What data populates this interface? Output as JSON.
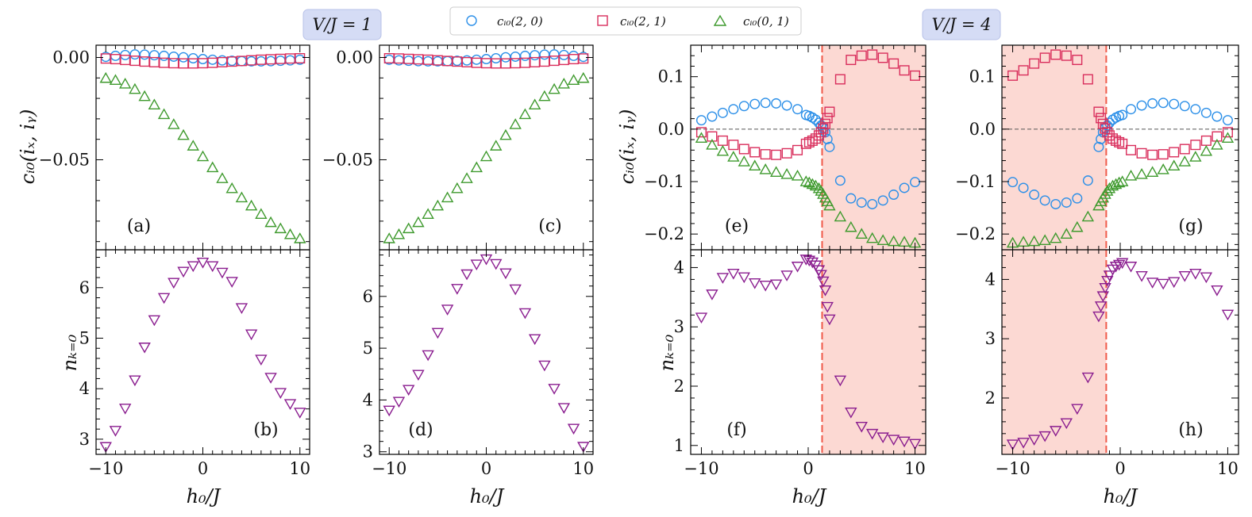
{
  "figure": {
    "legend": [
      {
        "label": "c_{i0}(2,0)",
        "marker": "circle",
        "color": "#2b8fe8"
      },
      {
        "label": "c_{i0}(2,1)",
        "marker": "square",
        "color": "#d92e5c"
      },
      {
        "label": "c_{i0}(0,1)",
        "marker": "triangle-up",
        "color": "#3f9a2e"
      }
    ],
    "legend_display": [
      "cᵢ₀(2, 0)",
      "cᵢ₀(2, 1)",
      "cᵢ₀(0, 1)"
    ],
    "titles": [
      "V/J = 1",
      "V/J = 4"
    ],
    "colors": {
      "circle": "#2b8fe8",
      "square": "#d92e5c",
      "triangle": "#3f9a2e",
      "nk": "#8a1d8f",
      "shade": "#fcd9d3",
      "vline": "#f05a4a",
      "title_bg": "#d5dcf5"
    },
    "axis_labels": {
      "corr_y": "cᵢ₀(iₓ, iᵧ)",
      "nk_y": "nₖ₌₀",
      "x": "h₀/J"
    }
  },
  "chart_data": [
    {
      "panel": "a",
      "type": "scatter",
      "title": "V/J = 1",
      "xlabel": "h_0/J",
      "ylabel": "c_{i0}(i_x, i_y)",
      "xlim": [
        -11,
        11
      ],
      "ylim": [
        -0.094,
        0.006
      ],
      "xticks": [
        -10,
        0,
        10
      ],
      "yticks": [
        0.0,
        -0.05
      ],
      "ytick_labels": [
        "0.00",
        "−0.05"
      ],
      "x": [
        -10,
        -9,
        -8,
        -7,
        -6,
        -5,
        -4,
        -3,
        -2,
        -1,
        0,
        1,
        2,
        3,
        4,
        5,
        6,
        7,
        8,
        9,
        10
      ],
      "series": [
        {
          "name": "c_{i0}(2,0)",
          "marker": "circle",
          "values": [
            0.0003,
            0.0008,
            0.0012,
            0.0015,
            0.0014,
            0.0011,
            0.0008,
            0.0004,
            0.0001,
            -0.0004,
            -0.0008,
            -0.0011,
            -0.0014,
            -0.0016,
            -0.0018,
            -0.0019,
            -0.0019,
            -0.0018,
            -0.0016,
            -0.0014,
            -0.0011
          ]
        },
        {
          "name": "c_{i0}(2,1)",
          "marker": "square",
          "values": [
            -0.0005,
            -0.0008,
            -0.0012,
            -0.0016,
            -0.002,
            -0.0023,
            -0.0026,
            -0.0028,
            -0.0029,
            -0.0029,
            -0.0028,
            -0.0026,
            -0.0023,
            -0.002,
            -0.0017,
            -0.0014,
            -0.0011,
            -0.0009,
            -0.0007,
            -0.0005,
            -0.0004
          ]
        },
        {
          "name": "c_{i0}(0,1)",
          "marker": "triangle-up",
          "values": [
            -0.0101,
            -0.0111,
            -0.0129,
            -0.0155,
            -0.019,
            -0.0231,
            -0.0278,
            -0.0327,
            -0.038,
            -0.0432,
            -0.0484,
            -0.0538,
            -0.0591,
            -0.064,
            -0.0685,
            -0.0725,
            -0.0766,
            -0.0806,
            -0.0836,
            -0.0865,
            -0.0885
          ]
        }
      ]
    },
    {
      "panel": "b",
      "type": "scatter",
      "xlabel": "h_0/J",
      "ylabel": "n_{k=0}",
      "xlim": [
        -11,
        11
      ],
      "ylim": [
        2.7,
        6.75
      ],
      "xticks": [
        -10,
        0,
        10
      ],
      "yticks": [
        3,
        4,
        5,
        6
      ],
      "x": [
        -10,
        -9,
        -8,
        -7,
        -6,
        -5,
        -4,
        -3,
        -2,
        -1,
        0,
        1,
        2,
        3,
        4,
        5,
        6,
        7,
        8,
        9,
        10
      ],
      "series": [
        {
          "name": "n_{k=0}",
          "marker": "triangle-down",
          "values": [
            2.85,
            3.17,
            3.61,
            4.17,
            4.82,
            5.36,
            5.8,
            6.1,
            6.32,
            6.43,
            6.5,
            6.43,
            6.3,
            6.12,
            5.6,
            5.08,
            4.58,
            4.22,
            3.92,
            3.7,
            3.53
          ]
        }
      ]
    },
    {
      "panel": "c",
      "type": "scatter",
      "xlabel": "h_0/J",
      "ylabel": "",
      "xlim": [
        -11,
        11
      ],
      "ylim": [
        -0.094,
        0.006
      ],
      "xticks": [
        -10,
        0,
        10
      ],
      "yticks": [
        0.0,
        -0.05
      ],
      "ytick_labels": [
        "0.00",
        "−0.05"
      ],
      "x": [
        -10,
        -9,
        -8,
        -7,
        -6,
        -5,
        -4,
        -3,
        -2,
        -1,
        0,
        1,
        2,
        3,
        4,
        5,
        6,
        7,
        8,
        9,
        10
      ],
      "series": [
        {
          "name": "c_{i0}(2,0)",
          "marker": "circle",
          "values": [
            -0.0011,
            -0.0014,
            -0.0016,
            -0.0018,
            -0.0019,
            -0.0019,
            -0.0018,
            -0.0016,
            -0.0014,
            -0.0011,
            -0.0008,
            -0.0004,
            0.0001,
            0.0004,
            0.0008,
            0.0011,
            0.0014,
            0.0015,
            0.0012,
            0.0008,
            0.0003
          ]
        },
        {
          "name": "c_{i0}(2,1)",
          "marker": "square",
          "values": [
            -0.0004,
            -0.0005,
            -0.0007,
            -0.0009,
            -0.0011,
            -0.0014,
            -0.0017,
            -0.002,
            -0.0023,
            -0.0026,
            -0.0028,
            -0.0029,
            -0.0029,
            -0.0028,
            -0.0026,
            -0.0023,
            -0.002,
            -0.0016,
            -0.0012,
            -0.0008,
            -0.0005
          ]
        },
        {
          "name": "c_{i0}(0,1)",
          "marker": "triangle-up",
          "values": [
            -0.0885,
            -0.0865,
            -0.0836,
            -0.0806,
            -0.0766,
            -0.0725,
            -0.0685,
            -0.064,
            -0.0591,
            -0.0538,
            -0.0484,
            -0.0432,
            -0.038,
            -0.0327,
            -0.0278,
            -0.0231,
            -0.019,
            -0.0155,
            -0.0129,
            -0.0111,
            -0.0101
          ]
        }
      ]
    },
    {
      "panel": "d",
      "type": "scatter",
      "xlabel": "h_0/J",
      "ylabel": "",
      "xlim": [
        -11,
        11
      ],
      "ylim": [
        2.95,
        6.9
      ],
      "xticks": [
        -10,
        0,
        10
      ],
      "yticks": [
        3,
        4,
        5,
        6
      ],
      "x": [
        -10,
        -9,
        -8,
        -7,
        -6,
        -5,
        -4,
        -3,
        -2,
        -1,
        0,
        1,
        2,
        3,
        4,
        5,
        6,
        7,
        8,
        9,
        10
      ],
      "series": [
        {
          "name": "n_{k=0}",
          "marker": "triangle-down",
          "values": [
            3.8,
            3.97,
            4.2,
            4.49,
            4.87,
            5.3,
            5.75,
            6.15,
            6.43,
            6.62,
            6.72,
            6.63,
            6.45,
            6.14,
            5.68,
            5.18,
            4.67,
            4.22,
            3.85,
            3.45,
            3.1
          ]
        }
      ]
    },
    {
      "panel": "e",
      "type": "scatter",
      "title": "V/J = 4",
      "xlabel": "h_0/J",
      "ylabel": "c_{i0}(i_x, i_y)",
      "xlim": [
        -11,
        11
      ],
      "ylim": [
        -0.23,
        0.16
      ],
      "xticks": [
        -10,
        0,
        10
      ],
      "yticks": [
        0.1,
        0.0,
        -0.1,
        -0.2
      ],
      "ytick_labels": [
        "0.1",
        "0.0",
        "−0.1",
        "−0.2"
      ],
      "shaded_region": [
        1.3,
        11
      ],
      "vline": 1.3,
      "hline": 0.0,
      "x": [
        -10,
        -9,
        -8,
        -7,
        -6,
        -5,
        -4,
        -3,
        -2,
        -1,
        -0.2,
        0.1,
        0.4,
        0.7,
        1.0,
        1.2,
        1.4,
        1.6,
        1.8,
        2,
        3,
        4,
        5,
        6,
        7,
        8,
        9,
        10
      ],
      "series": [
        {
          "name": "c_{i0}(2,0)",
          "marker": "circle",
          "values": [
            0.017,
            0.024,
            0.031,
            0.038,
            0.044,
            0.048,
            0.05,
            0.049,
            0.045,
            0.038,
            0.027,
            0.025,
            0.022,
            0.018,
            0.012,
            0.007,
            0.002,
            -0.006,
            -0.019,
            -0.034,
            -0.098,
            -0.132,
            -0.14,
            -0.143,
            -0.136,
            -0.125,
            -0.112,
            -0.101
          ]
        },
        {
          "name": "c_{i0}(2,1)",
          "marker": "square",
          "values": [
            -0.006,
            -0.014,
            -0.022,
            -0.03,
            -0.038,
            -0.044,
            -0.048,
            -0.049,
            -0.046,
            -0.04,
            -0.028,
            -0.025,
            -0.022,
            -0.018,
            -0.012,
            -0.006,
            0.001,
            0.01,
            0.021,
            0.033,
            0.095,
            0.132,
            0.14,
            0.142,
            0.136,
            0.125,
            0.112,
            0.102
          ]
        },
        {
          "name": "c_{i0}(0,1)",
          "marker": "triangle-up",
          "values": [
            -0.017,
            -0.03,
            -0.042,
            -0.053,
            -0.062,
            -0.07,
            -0.077,
            -0.082,
            -0.086,
            -0.089,
            -0.1,
            -0.102,
            -0.105,
            -0.108,
            -0.113,
            -0.118,
            -0.124,
            -0.131,
            -0.138,
            -0.146,
            -0.167,
            -0.187,
            -0.2,
            -0.208,
            -0.212,
            -0.214,
            -0.215,
            -0.217
          ]
        }
      ]
    },
    {
      "panel": "f",
      "type": "scatter",
      "xlabel": "h_0/J",
      "ylabel": "n_{k=0}",
      "xlim": [
        -11,
        11
      ],
      "ylim": [
        0.85,
        4.3
      ],
      "xticks": [
        -10,
        0,
        10
      ],
      "yticks": [
        1,
        2,
        3,
        4
      ],
      "shaded_region": [
        1.3,
        11
      ],
      "vline": 1.3,
      "x": [
        -10,
        -9,
        -8,
        -7,
        -6,
        -5,
        -4,
        -3,
        -2,
        -1,
        -0.2,
        0.1,
        0.4,
        0.7,
        1.0,
        1.2,
        1.4,
        1.6,
        1.8,
        2,
        3,
        4,
        5,
        6,
        7,
        8,
        9,
        10
      ],
      "series": [
        {
          "name": "n_{k=0}",
          "marker": "triangle-down",
          "values": [
            3.16,
            3.55,
            3.83,
            3.9,
            3.84,
            3.74,
            3.7,
            3.72,
            3.87,
            4.02,
            4.14,
            4.12,
            4.09,
            4.04,
            3.96,
            3.88,
            3.77,
            3.62,
            3.34,
            3.13,
            2.1,
            1.56,
            1.32,
            1.2,
            1.14,
            1.1,
            1.07,
            1.03
          ]
        }
      ]
    },
    {
      "panel": "g",
      "type": "scatter",
      "xlabel": "h_0/J",
      "ylabel": "",
      "xlim": [
        -11,
        11
      ],
      "ylim": [
        -0.23,
        0.16
      ],
      "xticks": [
        -10,
        0,
        10
      ],
      "yticks": [
        0.1,
        0.0,
        -0.1,
        -0.2
      ],
      "ytick_labels": [
        "0.1",
        "0.0",
        "−0.1",
        "−0.2"
      ],
      "shaded_region": [
        -11,
        -1.3
      ],
      "vline": -1.3,
      "hline": 0.0,
      "x": [
        -10,
        -9,
        -8,
        -7,
        -6,
        -5,
        -4,
        -3,
        -2,
        -1.8,
        -1.6,
        -1.4,
        -1.2,
        -1.0,
        -0.7,
        -0.4,
        -0.1,
        0.2,
        1,
        2,
        3,
        4,
        5,
        6,
        7,
        8,
        9,
        10
      ],
      "series": [
        {
          "name": "c_{i0}(2,0)",
          "marker": "circle",
          "values": [
            -0.101,
            -0.112,
            -0.125,
            -0.136,
            -0.143,
            -0.14,
            -0.132,
            -0.098,
            -0.034,
            -0.019,
            -0.006,
            0.002,
            0.007,
            0.012,
            0.018,
            0.022,
            0.025,
            0.027,
            0.038,
            0.045,
            0.049,
            0.05,
            0.048,
            0.044,
            0.038,
            0.031,
            0.024,
            0.017
          ]
        },
        {
          "name": "c_{i0}(2,1)",
          "marker": "square",
          "values": [
            0.102,
            0.112,
            0.125,
            0.136,
            0.142,
            0.14,
            0.132,
            0.095,
            0.033,
            0.021,
            0.01,
            0.001,
            -0.006,
            -0.012,
            -0.018,
            -0.022,
            -0.025,
            -0.028,
            -0.04,
            -0.046,
            -0.049,
            -0.048,
            -0.044,
            -0.038,
            -0.03,
            -0.022,
            -0.014,
            -0.006
          ]
        },
        {
          "name": "c_{i0}(0,1)",
          "marker": "triangle-up",
          "values": [
            -0.217,
            -0.215,
            -0.214,
            -0.212,
            -0.208,
            -0.2,
            -0.187,
            -0.167,
            -0.146,
            -0.138,
            -0.131,
            -0.124,
            -0.118,
            -0.113,
            -0.108,
            -0.105,
            -0.102,
            -0.1,
            -0.089,
            -0.086,
            -0.082,
            -0.077,
            -0.07,
            -0.062,
            -0.053,
            -0.042,
            -0.03,
            -0.017
          ]
        }
      ]
    },
    {
      "panel": "h",
      "type": "scatter",
      "xlabel": "h_0/J",
      "ylabel": "",
      "xlim": [
        -11,
        11
      ],
      "ylim": [
        1.05,
        4.5
      ],
      "xticks": [
        -10,
        0,
        10
      ],
      "yticks": [
        2,
        3,
        4
      ],
      "shaded_region": [
        -11,
        -1.3
      ],
      "vline": -1.3,
      "x": [
        -10,
        -9,
        -8,
        -7,
        -6,
        -5,
        -4,
        -3,
        -2,
        -1.8,
        -1.6,
        -1.4,
        -1.2,
        -1.0,
        -0.7,
        -0.4,
        -0.1,
        0.2,
        1,
        2,
        3,
        4,
        5,
        6,
        7,
        8,
        9,
        10
      ],
      "series": [
        {
          "name": "n_{k=0}",
          "marker": "triangle-down",
          "values": [
            1.22,
            1.25,
            1.3,
            1.36,
            1.45,
            1.58,
            1.82,
            2.35,
            3.38,
            3.55,
            3.72,
            3.86,
            3.98,
            4.07,
            4.17,
            4.22,
            4.25,
            4.28,
            4.22,
            4.06,
            3.95,
            3.93,
            3.96,
            4.06,
            4.1,
            4.04,
            3.82,
            3.41
          ]
        }
      ]
    }
  ]
}
